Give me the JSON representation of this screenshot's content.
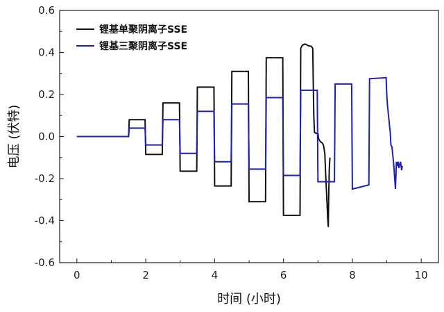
{
  "chart_data": {
    "type": "line",
    "xlabel": "时间 (小时)",
    "ylabel": "电压 (伏特)",
    "xlim": [
      -0.5,
      10.5
    ],
    "ylim": [
      -0.6,
      0.6
    ],
    "xticks": [
      0,
      2,
      4,
      6,
      8,
      10
    ],
    "yticks": [
      -0.6,
      -0.4,
      -0.2,
      0.0,
      0.2,
      0.4,
      0.6
    ],
    "xtick_labels": [
      "0",
      "2",
      "4",
      "6",
      "8",
      "10"
    ],
    "ytick_labels": [
      "-0.6",
      "-0.4",
      "-0.2",
      "0.0",
      "0.2",
      "0.4",
      "0.6"
    ],
    "grid": false,
    "legend_position": "top-left",
    "series": [
      {
        "name": "锂基单聚阴离子SSE",
        "color": "#111111",
        "x": [
          0,
          1.5,
          1.52,
          1.98,
          2.0,
          2.48,
          2.5,
          2.98,
          3.0,
          3.48,
          3.5,
          3.98,
          4.0,
          4.48,
          4.5,
          4.98,
          5.0,
          5.48,
          5.5,
          5.98,
          6.0,
          6.48,
          6.5,
          6.55,
          6.62,
          6.75,
          6.8,
          6.85,
          6.88,
          6.9,
          6.95,
          7.0,
          7.02,
          7.05,
          7.08,
          7.12,
          7.16,
          7.2,
          7.23,
          7.26,
          7.28,
          7.3,
          7.31,
          7.33,
          7.35
        ],
        "y": [
          0.0,
          0.0,
          0.08,
          0.08,
          -0.085,
          -0.085,
          0.16,
          0.16,
          -0.165,
          -0.165,
          0.235,
          0.235,
          -0.235,
          -0.235,
          0.31,
          0.31,
          -0.31,
          -0.31,
          0.375,
          0.375,
          -0.375,
          -0.375,
          0.42,
          0.435,
          0.44,
          0.43,
          0.43,
          0.42,
          0.1,
          0.02,
          0.015,
          0.015,
          -0.01,
          -0.02,
          -0.025,
          -0.03,
          -0.04,
          -0.08,
          -0.2,
          -0.3,
          -0.38,
          -0.43,
          -0.3,
          -0.15,
          -0.1
        ]
      },
      {
        "name": "锂基三聚阴离子SSE",
        "color": "#1f1fb4",
        "x": [
          0,
          1.5,
          1.52,
          1.98,
          2.0,
          2.48,
          2.5,
          2.98,
          3.0,
          3.48,
          3.5,
          3.98,
          4.0,
          4.48,
          4.5,
          4.98,
          5.0,
          5.48,
          5.5,
          5.98,
          6.0,
          6.48,
          6.5,
          6.98,
          7.0,
          7.48,
          7.5,
          7.98,
          8.0,
          8.48,
          8.5,
          8.98,
          9.0,
          9.02,
          9.05,
          9.08,
          9.1,
          9.12,
          9.15,
          9.18,
          9.2,
          9.25,
          9.28,
          9.3,
          9.33,
          9.35,
          9.38,
          9.4,
          9.43,
          9.45
        ],
        "y": [
          0.0,
          0.0,
          0.04,
          0.04,
          -0.04,
          -0.04,
          0.08,
          0.08,
          -0.08,
          -0.08,
          0.12,
          0.12,
          -0.12,
          -0.12,
          0.155,
          0.155,
          -0.155,
          -0.155,
          0.185,
          0.185,
          -0.185,
          -0.185,
          0.22,
          0.22,
          -0.215,
          -0.215,
          0.25,
          0.25,
          -0.25,
          -0.23,
          0.275,
          0.28,
          0.2,
          0.15,
          0.1,
          0.05,
          0.02,
          -0.04,
          -0.05,
          -0.1,
          -0.13,
          -0.25,
          -0.12,
          -0.14,
          -0.12,
          -0.15,
          -0.13,
          -0.12,
          -0.16,
          -0.14
        ]
      }
    ]
  }
}
